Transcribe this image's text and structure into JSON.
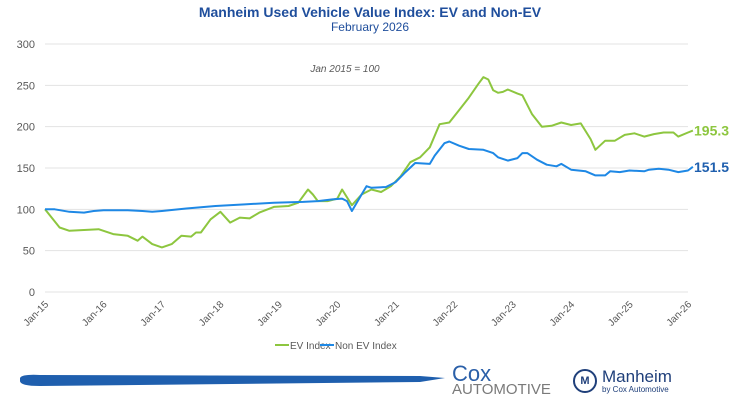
{
  "chart_data": {
    "type": "line",
    "title": "Manheim Used Vehicle Value Index: EV and Non-EV",
    "subtitle": "February 2026",
    "annotation": "Jan 2015 = 100",
    "ylim": [
      0,
      300
    ],
    "yticks": [
      0,
      50,
      100,
      150,
      200,
      250,
      300
    ],
    "xticks": [
      "Jan-15",
      "Jan-16",
      "Jan-17",
      "Jan-18",
      "Jan-19",
      "Jan-20",
      "Jan-21",
      "Jan-22",
      "Jan-23",
      "Jan-24",
      "Jan-25",
      "Jan-26"
    ],
    "grid": true,
    "legend": "bottom",
    "series": [
      {
        "name": "EV Index",
        "color": "#8dc63f",
        "end_label": "195.3",
        "points": [
          [
            "2015-01",
            100
          ],
          [
            "2015-04",
            78
          ],
          [
            "2015-06",
            74
          ],
          [
            "2015-09",
            75
          ],
          [
            "2015-12",
            76
          ],
          [
            "2016-03",
            70
          ],
          [
            "2016-06",
            68
          ],
          [
            "2016-08",
            62
          ],
          [
            "2016-09",
            67
          ],
          [
            "2016-11",
            58
          ],
          [
            "2017-01",
            54
          ],
          [
            "2017-03",
            58
          ],
          [
            "2017-05",
            68
          ],
          [
            "2017-07",
            67
          ],
          [
            "2017-08",
            72
          ],
          [
            "2017-09",
            72
          ],
          [
            "2017-11",
            88
          ],
          [
            "2018-01",
            97
          ],
          [
            "2018-03",
            84
          ],
          [
            "2018-05",
            90
          ],
          [
            "2018-07",
            89
          ],
          [
            "2018-09",
            96
          ],
          [
            "2018-12",
            103
          ],
          [
            "2019-03",
            104
          ],
          [
            "2019-05",
            108
          ],
          [
            "2019-07",
            124
          ],
          [
            "2019-08",
            118
          ],
          [
            "2019-09",
            110
          ],
          [
            "2019-11",
            110
          ],
          [
            "2020-01",
            113
          ],
          [
            "2020-02",
            124
          ],
          [
            "2020-04",
            105
          ],
          [
            "2020-06",
            118
          ],
          [
            "2020-08",
            124
          ],
          [
            "2020-10",
            121
          ],
          [
            "2020-12",
            128
          ],
          [
            "2021-02",
            140
          ],
          [
            "2021-04",
            157
          ],
          [
            "2021-06",
            163
          ],
          [
            "2021-08",
            175
          ],
          [
            "2021-10",
            203
          ],
          [
            "2021-12",
            205
          ],
          [
            "2022-02",
            220
          ],
          [
            "2022-04",
            235
          ],
          [
            "2022-06",
            252
          ],
          [
            "2022-07",
            260
          ],
          [
            "2022-08",
            257
          ],
          [
            "2022-09",
            244
          ],
          [
            "2022-10",
            241
          ],
          [
            "2022-11",
            242
          ],
          [
            "2022-12",
            245
          ],
          [
            "2023-02",
            240
          ],
          [
            "2023-03",
            238
          ],
          [
            "2023-05",
            215
          ],
          [
            "2023-07",
            200
          ],
          [
            "2023-09",
            201
          ],
          [
            "2023-11",
            205
          ],
          [
            "2024-01",
            202
          ],
          [
            "2024-03",
            204
          ],
          [
            "2024-05",
            185
          ],
          [
            "2024-06",
            172
          ],
          [
            "2024-08",
            183
          ],
          [
            "2024-10",
            183
          ],
          [
            "2024-12",
            190
          ],
          [
            "2025-02",
            192
          ],
          [
            "2025-04",
            188
          ],
          [
            "2025-06",
            191
          ],
          [
            "2025-08",
            193
          ],
          [
            "2025-10",
            193
          ],
          [
            "2025-11",
            188
          ],
          [
            "2026-01",
            193
          ],
          [
            "2026-02",
            195.3
          ]
        ]
      },
      {
        "name": "Non EV Index",
        "color": "#1e88e5",
        "end_label": "151.5",
        "points": [
          [
            "2015-01",
            100
          ],
          [
            "2015-03",
            100
          ],
          [
            "2015-06",
            97
          ],
          [
            "2015-09",
            96
          ],
          [
            "2015-11",
            98
          ],
          [
            "2016-01",
            99
          ],
          [
            "2016-06",
            99
          ],
          [
            "2016-09",
            98
          ],
          [
            "2016-11",
            97
          ],
          [
            "2017-01",
            98
          ],
          [
            "2017-06",
            101
          ],
          [
            "2017-12",
            104
          ],
          [
            "2018-06",
            106
          ],
          [
            "2018-12",
            108
          ],
          [
            "2019-06",
            109
          ],
          [
            "2019-09",
            110
          ],
          [
            "2019-12",
            112
          ],
          [
            "2020-02",
            113
          ],
          [
            "2020-03",
            110
          ],
          [
            "2020-04",
            98
          ],
          [
            "2020-06",
            118
          ],
          [
            "2020-07",
            128
          ],
          [
            "2020-08",
            126
          ],
          [
            "2020-11",
            127
          ],
          [
            "2021-01",
            133
          ],
          [
            "2021-03",
            145
          ],
          [
            "2021-05",
            156
          ],
          [
            "2021-08",
            155
          ],
          [
            "2021-09",
            165
          ],
          [
            "2021-11",
            180
          ],
          [
            "2021-12",
            182
          ],
          [
            "2022-02",
            177
          ],
          [
            "2022-04",
            173
          ],
          [
            "2022-07",
            172
          ],
          [
            "2022-09",
            168
          ],
          [
            "2022-10",
            163
          ],
          [
            "2022-12",
            159
          ],
          [
            "2023-02",
            162
          ],
          [
            "2023-03",
            168
          ],
          [
            "2023-04",
            168
          ],
          [
            "2023-06",
            160
          ],
          [
            "2023-08",
            154
          ],
          [
            "2023-10",
            152
          ],
          [
            "2023-11",
            155
          ],
          [
            "2024-01",
            148
          ],
          [
            "2024-04",
            146
          ],
          [
            "2024-06",
            141
          ],
          [
            "2024-08",
            141
          ],
          [
            "2024-09",
            146
          ],
          [
            "2024-11",
            145
          ],
          [
            "2025-01",
            147
          ],
          [
            "2025-04",
            146
          ],
          [
            "2025-05",
            148
          ],
          [
            "2025-07",
            149
          ],
          [
            "2025-09",
            148
          ],
          [
            "2025-11",
            145
          ],
          [
            "2026-01",
            147
          ],
          [
            "2026-02",
            151.5
          ]
        ]
      }
    ]
  },
  "logos": {
    "cox_line1": "Cox",
    "cox_line2": "AUTOMOTIVE",
    "manheim": "Manheim",
    "manheim_sub": "by Cox Automotive"
  }
}
